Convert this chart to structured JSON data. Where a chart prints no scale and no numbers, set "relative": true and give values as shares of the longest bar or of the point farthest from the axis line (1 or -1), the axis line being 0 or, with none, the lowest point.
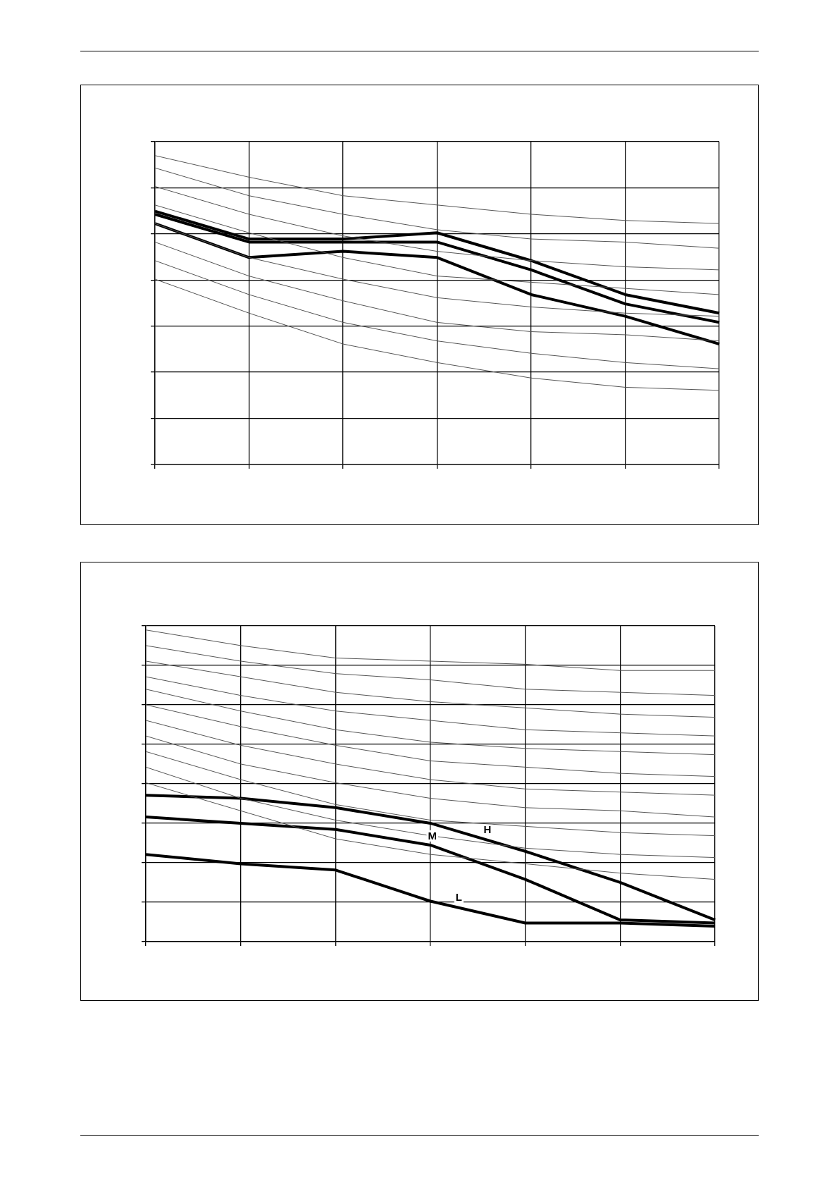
{
  "chart_data": [
    {
      "type": "line",
      "relative": true,
      "categories": [
        null,
        null,
        null,
        null,
        null,
        null,
        null
      ],
      "grid": true,
      "tick_labels": false,
      "legend": false,
      "marker": "none",
      "line_style": "solid",
      "series": [
        {
          "color": "#555555",
          "values": [
            1.0,
            0.93,
            0.87,
            0.84,
            0.81,
            0.79,
            0.78
          ]
        },
        {
          "color": "#555555",
          "values": [
            0.96,
            0.87,
            0.81,
            0.76,
            0.73,
            0.72,
            0.7
          ]
        },
        {
          "color": "#555555",
          "values": [
            0.9,
            0.81,
            0.74,
            0.69,
            0.66,
            0.64,
            0.63
          ]
        },
        {
          "color": "#555555",
          "values": [
            0.84,
            0.75,
            0.67,
            0.61,
            0.59,
            0.57,
            0.55
          ]
        },
        {
          "color": "#555555",
          "values": [
            0.78,
            0.67,
            0.6,
            0.54,
            0.51,
            0.49,
            0.48
          ]
        },
        {
          "color": "#555555",
          "values": [
            0.72,
            0.61,
            0.53,
            0.46,
            0.43,
            0.42,
            0.4
          ]
        },
        {
          "color": "#555555",
          "values": [
            0.66,
            0.55,
            0.46,
            0.4,
            0.36,
            0.33,
            0.31
          ]
        },
        {
          "color": "#555555",
          "values": [
            0.6,
            0.49,
            0.39,
            0.33,
            0.28,
            0.25,
            0.24
          ]
        },
        {
          "color": "#000000",
          "values": [
            0.82,
            0.73,
            0.73,
            0.75,
            0.66,
            0.55,
            0.49
          ]
        },
        {
          "color": "#000000",
          "values": [
            0.81,
            0.72,
            0.72,
            0.72,
            0.63,
            0.52,
            0.46
          ]
        },
        {
          "color": "#000000",
          "values": [
            0.78,
            0.67,
            0.69,
            0.67,
            0.55,
            0.48,
            0.39
          ]
        }
      ]
    },
    {
      "type": "line",
      "relative": true,
      "categories": [
        null,
        null,
        null,
        null,
        null,
        null,
        null
      ],
      "grid": true,
      "tick_labels": false,
      "legend": false,
      "marker": "none",
      "line_style": "solid",
      "series": [
        {
          "color": "#555555",
          "values": [
            1.0,
            0.95,
            0.91,
            0.9,
            0.89,
            0.87,
            0.87
          ]
        },
        {
          "color": "#555555",
          "values": [
            0.95,
            0.9,
            0.86,
            0.84,
            0.81,
            0.8,
            0.79
          ]
        },
        {
          "color": "#555555",
          "values": [
            0.9,
            0.85,
            0.8,
            0.77,
            0.75,
            0.73,
            0.72
          ]
        },
        {
          "color": "#555555",
          "values": [
            0.85,
            0.79,
            0.74,
            0.71,
            0.68,
            0.67,
            0.66
          ]
        },
        {
          "color": "#555555",
          "values": [
            0.81,
            0.74,
            0.68,
            0.64,
            0.62,
            0.61,
            0.6
          ]
        },
        {
          "color": "#555555",
          "values": [
            0.76,
            0.69,
            0.63,
            0.58,
            0.56,
            0.54,
            0.53
          ]
        },
        {
          "color": "#555555",
          "values": [
            0.71,
            0.63,
            0.57,
            0.52,
            0.49,
            0.48,
            0.47
          ]
        },
        {
          "color": "#555555",
          "values": [
            0.66,
            0.57,
            0.51,
            0.46,
            0.43,
            0.42,
            0.4
          ]
        },
        {
          "color": "#555555",
          "values": [
            0.61,
            0.52,
            0.44,
            0.39,
            0.37,
            0.35,
            0.34
          ]
        },
        {
          "color": "#555555",
          "values": [
            0.56,
            0.46,
            0.39,
            0.34,
            0.3,
            0.28,
            0.27
          ]
        },
        {
          "color": "#555555",
          "values": [
            0.51,
            0.42,
            0.33,
            0.28,
            0.25,
            0.22,
            0.2
          ]
        },
        {
          "name": "H",
          "color": "#000000",
          "values": [
            0.47,
            0.46,
            0.43,
            0.38,
            0.29,
            0.19,
            0.07
          ]
        },
        {
          "name": "M",
          "color": "#000000",
          "values": [
            0.4,
            0.38,
            0.36,
            0.31,
            0.2,
            0.07,
            0.06
          ]
        },
        {
          "name": "L",
          "color": "#000000",
          "values": [
            0.28,
            0.25,
            0.23,
            0.13,
            0.06,
            0.06,
            0.05
          ]
        }
      ]
    }
  ]
}
